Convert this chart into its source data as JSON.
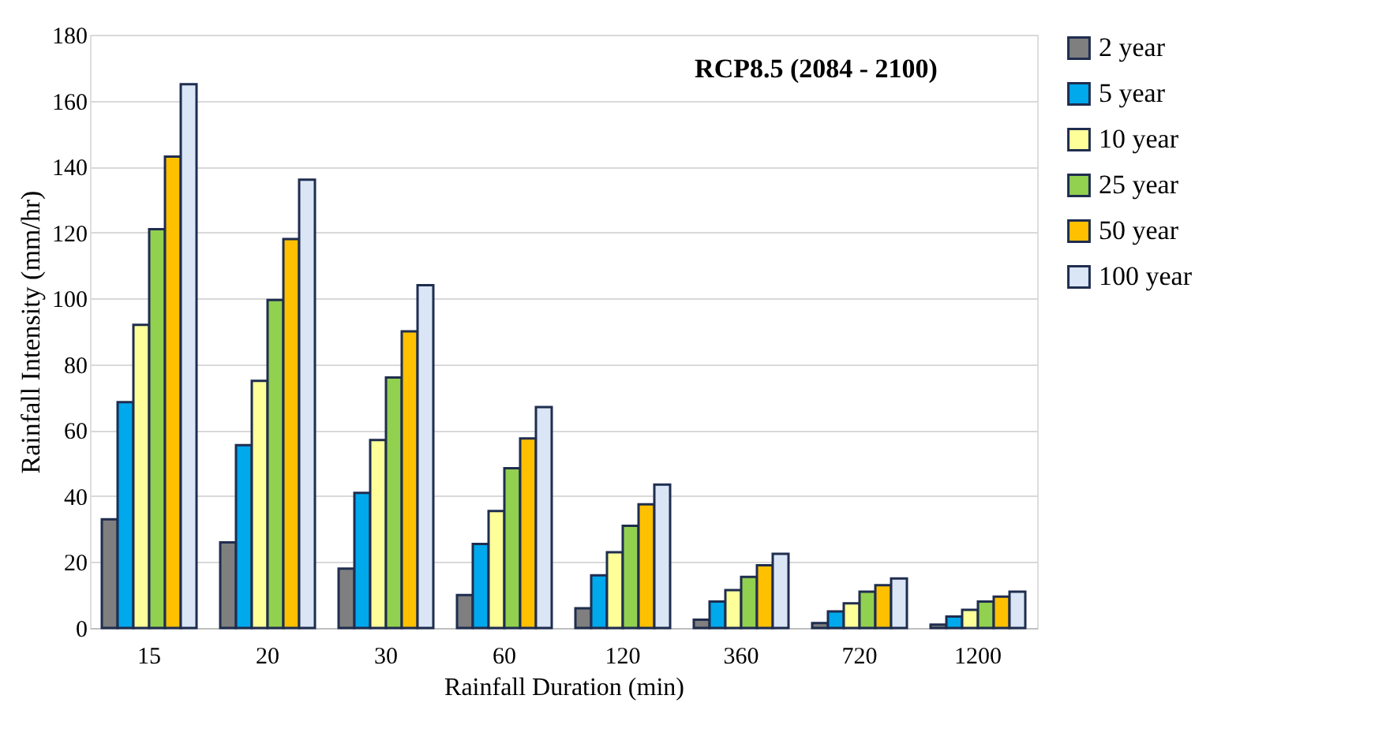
{
  "chart_data": {
    "type": "bar",
    "title": "RCP8.5 (2084 - 2100)",
    "xlabel": "Rainfall Duration (min)",
    "ylabel": "Rainfall Intensity (mm/hr)",
    "categories": [
      "15",
      "20",
      "30",
      "60",
      "120",
      "360",
      "720",
      "1200"
    ],
    "series": [
      {
        "name": "2 year",
        "color": "#7f7f7f",
        "values": [
          33,
          26,
          18,
          10,
          6,
          2.5,
          1.5,
          1
        ]
      },
      {
        "name": "5 year",
        "color": "#00a8ec",
        "values": [
          68.5,
          55.5,
          41,
          25.5,
          16,
          8,
          5,
          3.5
        ]
      },
      {
        "name": "10 year",
        "color": "#ffff99",
        "values": [
          92,
          75,
          57,
          35.5,
          23,
          11.5,
          7.5,
          5.5
        ]
      },
      {
        "name": "25 year",
        "color": "#92d050",
        "values": [
          121,
          99.5,
          76,
          48.5,
          31,
          15.5,
          11,
          8
        ]
      },
      {
        "name": "50 year",
        "color": "#ffc000",
        "values": [
          143,
          118,
          90,
          57.5,
          37.5,
          19,
          13,
          9.5
        ]
      },
      {
        "name": "100 year",
        "color": "#dae6f6",
        "values": [
          165,
          136,
          104,
          67,
          43.5,
          22.5,
          15,
          11
        ]
      }
    ],
    "ylim": [
      0,
      180
    ],
    "yticks": [
      0,
      20,
      40,
      60,
      80,
      100,
      120,
      140,
      160,
      180
    ],
    "grid": "y",
    "legend": "right"
  }
}
